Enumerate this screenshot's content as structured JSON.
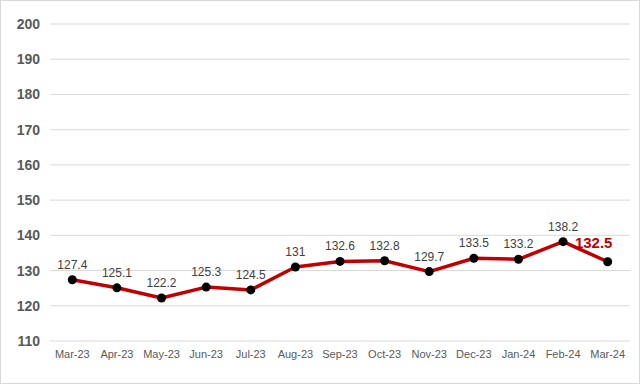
{
  "chart_data": {
    "type": "line",
    "categories": [
      "Mar-23",
      "Apr-23",
      "May-23",
      "Jun-23",
      "Jul-23",
      "Aug-23",
      "Sep-23",
      "Oct-23",
      "Nov-23",
      "Dec-23",
      "Jan-24",
      "Feb-24",
      "Mar-24"
    ],
    "values": [
      127.4,
      125.1,
      122.2,
      125.3,
      124.5,
      131,
      132.6,
      132.8,
      129.7,
      133.5,
      133.2,
      138.2,
      132.5
    ],
    "color": "#c00000",
    "ylim": [
      110,
      200
    ],
    "yticks": [
      110,
      120,
      130,
      140,
      150,
      160,
      170,
      180,
      190,
      200
    ],
    "grid": true,
    "data_labels": true,
    "marker": "circle"
  }
}
